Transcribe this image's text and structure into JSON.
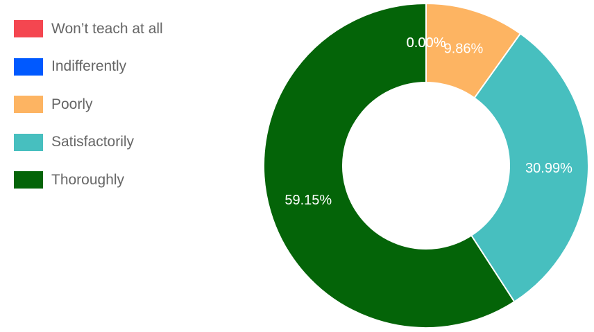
{
  "chart_data": {
    "type": "pie",
    "variant": "donut",
    "categories": [
      "Won’t teach at all",
      "Indifferently",
      "Poorly",
      "Satisfactorily",
      "Thoroughly"
    ],
    "values": [
      0.0,
      0.0,
      9.86,
      30.99,
      59.15
    ],
    "data_labels": [
      "0.00%",
      "0.00%",
      "9.86%",
      "30.99%",
      "59.15%"
    ],
    "colors": [
      "#f44650",
      "#0059ff",
      "#fdb462",
      "#47bfbf",
      "#046408"
    ],
    "legend_position": "left",
    "start_angle": "top",
    "direction": "clockwise"
  }
}
